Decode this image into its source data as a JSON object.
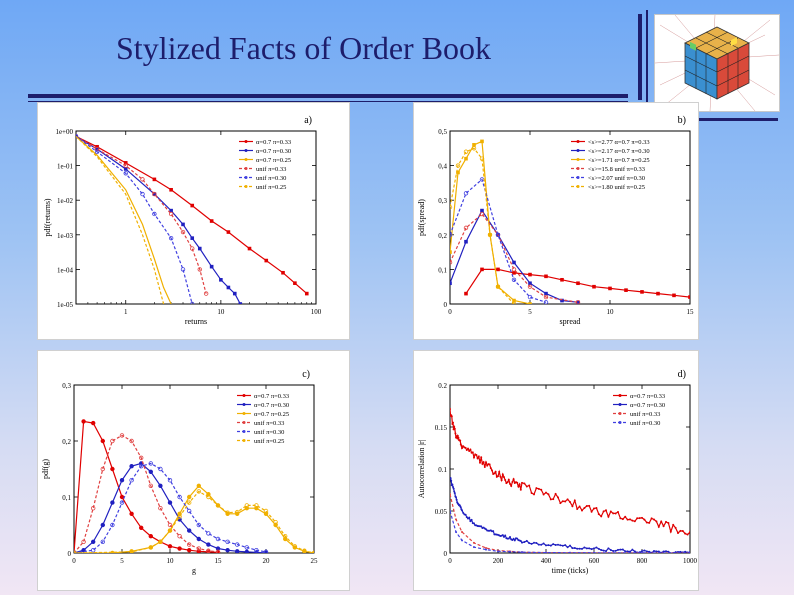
{
  "slide": {
    "title": "Stylized Facts of Order Book"
  },
  "chart_data": [
    {
      "id": "a",
      "panel_label": "a)",
      "type": "line",
      "xscale": "log",
      "yscale": "log",
      "xlim": [
        0.3,
        100
      ],
      "ylim": [
        1e-05,
        1
      ],
      "xlabel": "returns",
      "ylabel": "pdf(returns)",
      "xticks": [
        1,
        10,
        100
      ],
      "xtick_labels": [
        "1",
        "10",
        "100"
      ],
      "yticks": [
        1,
        0.1,
        0.01,
        0.001,
        0.0001,
        1e-05
      ],
      "ytick_labels": [
        "1e+00",
        "1e-01",
        "1e-02",
        "1e-03",
        "1e-04",
        "1e-05"
      ],
      "legend_position": "top-right",
      "series": [
        {
          "name": "α=0.7 π=0.33",
          "color": "#e00000",
          "style": "solid",
          "marker": "square",
          "x": [
            0.3,
            0.5,
            1,
            2,
            3,
            5,
            8,
            12,
            20,
            30,
            45,
            60,
            80
          ],
          "y": [
            0.7,
            0.35,
            0.12,
            0.04,
            0.02,
            0.007,
            0.0025,
            0.0012,
            0.0004,
            0.00018,
            8e-05,
            4e-05,
            2e-05
          ]
        },
        {
          "name": "α=0.7 π=0.30",
          "color": "#2020c0",
          "style": "solid",
          "marker": "square",
          "x": [
            0.3,
            0.5,
            1,
            2,
            3,
            4,
            5,
            6,
            8,
            10,
            12,
            14,
            16
          ],
          "y": [
            0.7,
            0.3,
            0.08,
            0.015,
            0.005,
            0.002,
            0.0008,
            0.0004,
            0.00012,
            5e-05,
            3e-05,
            2e-05,
            1e-05
          ]
        },
        {
          "name": "α=0.7 π=0.25",
          "color": "#f0b000",
          "style": "solid",
          "marker": "none",
          "x": [
            0.3,
            0.5,
            1,
            1.5,
            2,
            2.5,
            3
          ],
          "y": [
            0.7,
            0.2,
            0.02,
            0.002,
            0.0002,
            3e-05,
            1e-05
          ]
        },
        {
          "name": "unif π=0.33",
          "color": "#e04040",
          "style": "dashed",
          "marker": "circle",
          "x": [
            0.3,
            0.5,
            1,
            1.5,
            2,
            3,
            4,
            5,
            6,
            7
          ],
          "y": [
            0.7,
            0.3,
            0.1,
            0.04,
            0.015,
            0.004,
            0.0012,
            0.0004,
            0.0001,
            2e-05
          ]
        },
        {
          "name": "unif π=0.30",
          "color": "#4040e0",
          "style": "dashed",
          "marker": "circle",
          "x": [
            0.3,
            0.5,
            1,
            1.5,
            2,
            3,
            4,
            5
          ],
          "y": [
            0.7,
            0.25,
            0.06,
            0.015,
            0.004,
            0.0008,
            0.0001,
            1e-05
          ]
        },
        {
          "name": "unif π=0.25",
          "color": "#f0b000",
          "style": "dashed",
          "marker": "none",
          "x": [
            0.3,
            0.5,
            1,
            1.5,
            2,
            2.5
          ],
          "y": [
            0.7,
            0.18,
            0.015,
            0.001,
            0.0001,
            1e-05
          ]
        }
      ]
    },
    {
      "id": "b",
      "panel_label": "b)",
      "type": "line",
      "xscale": "linear",
      "yscale": "linear",
      "xlim": [
        0,
        15
      ],
      "ylim": [
        0,
        0.5
      ],
      "xlabel": "spread",
      "ylabel": "pdf(spread)",
      "xticks": [
        0,
        5,
        10,
        15
      ],
      "xtick_labels": [
        "0",
        "5",
        "10",
        "15"
      ],
      "yticks": [
        0,
        0.1,
        0.2,
        0.3,
        0.4,
        0.5
      ],
      "ytick_labels": [
        "0",
        "0,1",
        "0,2",
        "0,3",
        "0,4",
        "0,5"
      ],
      "legend_position": "top-right",
      "series": [
        {
          "name": "<s>=2.77  α=0.7 π=0.33",
          "color": "#e00000",
          "style": "solid",
          "marker": "square",
          "x": [
            1,
            2,
            3,
            4,
            5,
            6,
            7,
            8,
            9,
            10,
            11,
            12,
            13,
            14,
            15
          ],
          "y": [
            0.03,
            0.1,
            0.1,
            0.09,
            0.085,
            0.08,
            0.07,
            0.06,
            0.05,
            0.045,
            0.04,
            0.035,
            0.03,
            0.025,
            0.02
          ]
        },
        {
          "name": "<s>=2.17  α=0.7 π=0.30",
          "color": "#2020c0",
          "style": "solid",
          "marker": "square",
          "x": [
            0,
            1,
            2,
            3,
            4,
            5,
            6,
            7,
            8
          ],
          "y": [
            0.06,
            0.18,
            0.27,
            0.2,
            0.12,
            0.06,
            0.03,
            0.01,
            0.005
          ]
        },
        {
          "name": "<s>=1.71  α=0.7 π=0.25",
          "color": "#f0b000",
          "style": "solid",
          "marker": "square",
          "x": [
            0,
            0.5,
            1,
            1.5,
            2,
            2.5,
            3,
            4,
            5
          ],
          "y": [
            0.15,
            0.38,
            0.42,
            0.46,
            0.47,
            0.2,
            0.05,
            0.01,
            0.0
          ]
        },
        {
          "name": "<s>=15.8  unif π=0.33",
          "color": "#e04040",
          "style": "dashed",
          "marker": "circle",
          "x": [
            0,
            1,
            2,
            3,
            4,
            5,
            6,
            8
          ],
          "y": [
            0.12,
            0.22,
            0.26,
            0.2,
            0.1,
            0.05,
            0.02,
            0.005
          ]
        },
        {
          "name": "<s>=2.07  unif π=0.30",
          "color": "#4040e0",
          "style": "dashed",
          "marker": "circle",
          "x": [
            0,
            1,
            2,
            3,
            4,
            5,
            6
          ],
          "y": [
            0.2,
            0.32,
            0.36,
            0.2,
            0.07,
            0.02,
            0.005
          ]
        },
        {
          "name": "<s>=1.80  unif π=0.25",
          "color": "#f0b000",
          "style": "dashed",
          "marker": "circle",
          "x": [
            0,
            0.5,
            1,
            1.5,
            2,
            2.5,
            3,
            4
          ],
          "y": [
            0.28,
            0.4,
            0.44,
            0.45,
            0.42,
            0.2,
            0.05,
            0.0
          ]
        }
      ]
    },
    {
      "id": "c",
      "panel_label": "c)",
      "type": "line",
      "xscale": "linear",
      "yscale": "linear",
      "xlim": [
        0,
        25
      ],
      "ylim": [
        0,
        0.3
      ],
      "xlabel": "g",
      "ylabel": "pdf(g)",
      "xticks": [
        0,
        5,
        10,
        15,
        20,
        25
      ],
      "xtick_labels": [
        "0",
        "5",
        "10",
        "15",
        "20",
        "25"
      ],
      "yticks": [
        0,
        0.1,
        0.2,
        0.3
      ],
      "ytick_labels": [
        "0",
        "0,1",
        "0,2",
        "0,3"
      ],
      "legend_position": "top-right",
      "series": [
        {
          "name": "α=0.7 π=0.33",
          "color": "#e00000",
          "style": "solid",
          "marker": "circle",
          "x": [
            0,
            1,
            2,
            3,
            4,
            5,
            6,
            7,
            8,
            9,
            10,
            11,
            12,
            13,
            14,
            15
          ],
          "y": [
            0,
            0.235,
            0.232,
            0.2,
            0.15,
            0.1,
            0.07,
            0.045,
            0.03,
            0.02,
            0.012,
            0.008,
            0.005,
            0.003,
            0.002,
            0.001
          ]
        },
        {
          "name": "α=0.7 π=0.30",
          "color": "#2020c0",
          "style": "solid",
          "marker": "circle",
          "x": [
            0,
            1,
            2,
            3,
            4,
            5,
            6,
            7,
            8,
            9,
            10,
            11,
            12,
            13,
            14,
            15,
            16,
            17,
            18,
            19,
            20
          ],
          "y": [
            0,
            0.005,
            0.02,
            0.05,
            0.09,
            0.13,
            0.155,
            0.16,
            0.145,
            0.12,
            0.09,
            0.06,
            0.04,
            0.025,
            0.015,
            0.008,
            0.005,
            0.003,
            0.002,
            0.001,
            0
          ]
        },
        {
          "name": "α=0.7 π=0.25",
          "color": "#f0b000",
          "style": "solid",
          "marker": "circle",
          "x": [
            0,
            4,
            6,
            8,
            9,
            10,
            11,
            12,
            13,
            14,
            15,
            16,
            17,
            18,
            19,
            20,
            21,
            22,
            23,
            24,
            25
          ],
          "y": [
            0,
            0,
            0.003,
            0.01,
            0.02,
            0.04,
            0.07,
            0.1,
            0.12,
            0.105,
            0.085,
            0.07,
            0.07,
            0.08,
            0.08,
            0.07,
            0.05,
            0.025,
            0.01,
            0.003,
            0
          ]
        },
        {
          "name": "unif π=0.33",
          "color": "#e04040",
          "style": "dashed",
          "marker": "circle",
          "x": [
            0,
            1,
            2,
            3,
            4,
            5,
            6,
            7,
            8,
            9,
            10,
            11,
            12,
            13,
            14,
            15
          ],
          "y": [
            0,
            0.02,
            0.08,
            0.15,
            0.2,
            0.21,
            0.2,
            0.17,
            0.12,
            0.08,
            0.05,
            0.03,
            0.015,
            0.008,
            0.004,
            0.002
          ]
        },
        {
          "name": "unif π=0.30",
          "color": "#4040e0",
          "style": "dashed",
          "marker": "circle",
          "x": [
            0,
            2,
            3,
            4,
            5,
            6,
            7,
            8,
            9,
            10,
            11,
            12,
            13,
            14,
            15,
            16,
            17,
            18,
            19,
            20
          ],
          "y": [
            0,
            0.005,
            0.02,
            0.05,
            0.09,
            0.13,
            0.155,
            0.16,
            0.15,
            0.13,
            0.1,
            0.075,
            0.05,
            0.035,
            0.025,
            0.02,
            0.015,
            0.01,
            0.005,
            0.002
          ]
        },
        {
          "name": "unif π=0.25",
          "color": "#f0b000",
          "style": "dashed",
          "marker": "circle",
          "x": [
            0,
            6,
            8,
            9,
            10,
            11,
            12,
            13,
            14,
            15,
            16,
            17,
            18,
            19,
            20,
            21,
            22,
            23,
            24,
            25
          ],
          "y": [
            0,
            0.002,
            0.01,
            0.02,
            0.04,
            0.065,
            0.09,
            0.11,
            0.1,
            0.085,
            0.072,
            0.073,
            0.085,
            0.085,
            0.075,
            0.055,
            0.03,
            0.012,
            0.004,
            0
          ]
        }
      ]
    },
    {
      "id": "d",
      "panel_label": "d)",
      "type": "line",
      "xscale": "linear",
      "yscale": "linear",
      "xlim": [
        0,
        1000
      ],
      "ylim": [
        0,
        0.2
      ],
      "xlabel": "time (ticks)",
      "ylabel": "Autocorrelation |r|",
      "xticks": [
        0,
        200,
        400,
        600,
        800,
        1000
      ],
      "xtick_labels": [
        "0",
        "200",
        "400",
        "600",
        "800",
        "1000"
      ],
      "yticks": [
        0,
        0.05,
        0.1,
        0.15,
        0.2
      ],
      "ytick_labels": [
        "0",
        "0.05",
        "0.1",
        "0.15",
        "0.2"
      ],
      "legend_position": "top-right",
      "series": [
        {
          "name": "α=0.7 π=0.33",
          "color": "#e00000",
          "style": "solid",
          "marker": "dot",
          "x": [
            0,
            25,
            50,
            100,
            150,
            200,
            250,
            300,
            400,
            500,
            600,
            700,
            800,
            900,
            1000
          ],
          "y": [
            0.17,
            0.14,
            0.13,
            0.115,
            0.105,
            0.095,
            0.085,
            0.08,
            0.07,
            0.06,
            0.05,
            0.045,
            0.04,
            0.032,
            0.025
          ]
        },
        {
          "name": "α=0.7 π=0.30",
          "color": "#2020c0",
          "style": "solid",
          "marker": "dot",
          "x": [
            0,
            25,
            50,
            100,
            150,
            200,
            250,
            300,
            400,
            500,
            600,
            700,
            800,
            900,
            1000
          ],
          "y": [
            0.09,
            0.065,
            0.05,
            0.035,
            0.028,
            0.022,
            0.018,
            0.014,
            0.01,
            0.007,
            0.005,
            0.003,
            0.002,
            0.0015,
            0.001
          ]
        },
        {
          "name": "unif π=0.33",
          "color": "#e04040",
          "style": "dashed",
          "marker": "dot",
          "x": [
            0,
            25,
            50,
            100,
            150,
            200,
            250,
            300,
            400,
            500,
            600,
            800,
            1000
          ],
          "y": [
            0.07,
            0.04,
            0.025,
            0.012,
            0.006,
            0.003,
            0.002,
            0.001,
            0.0005,
            0.0003,
            0.0002,
            0.0001,
            0
          ]
        },
        {
          "name": "unif π=0.30",
          "color": "#4040e0",
          "style": "dashed",
          "marker": "dot",
          "x": [
            0,
            25,
            50,
            100,
            150,
            200,
            250,
            300,
            400,
            500,
            600,
            800,
            1000
          ],
          "y": [
            0.05,
            0.025,
            0.015,
            0.007,
            0.004,
            0.002,
            0.0015,
            0.001,
            0.0005,
            0.0003,
            0.0002,
            0.0001,
            0
          ]
        }
      ]
    }
  ]
}
